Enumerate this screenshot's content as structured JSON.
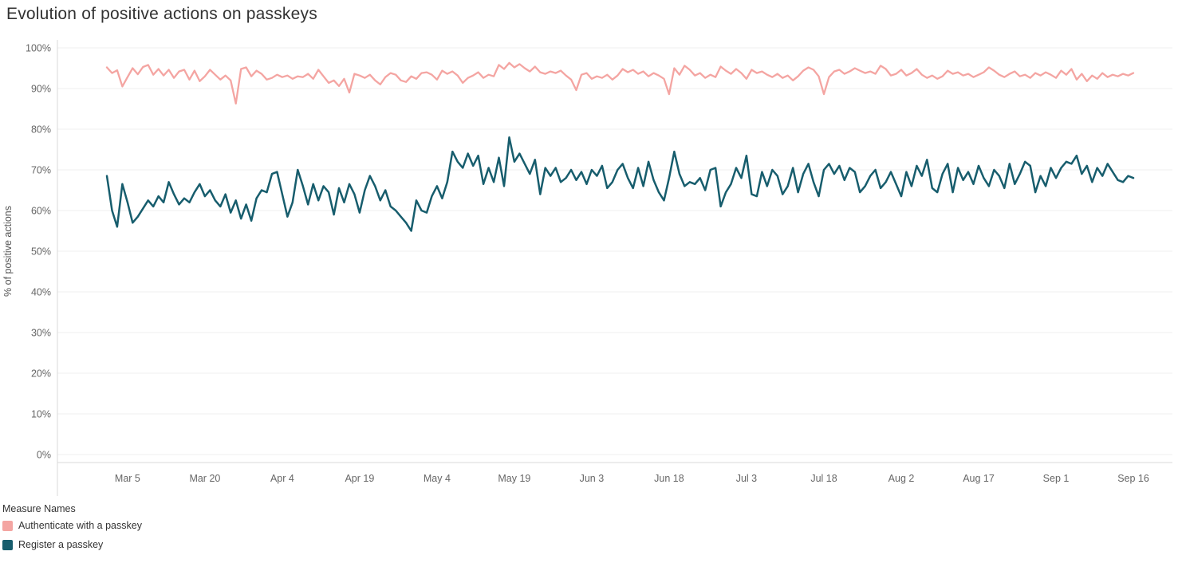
{
  "title": "Evolution of positive actions on passkeys",
  "legend": {
    "title": "Measure Names"
  },
  "chart_data": {
    "type": "line",
    "title": "Evolution of positive actions on passkeys",
    "xlabel": "",
    "ylabel": "% of positive actions",
    "ylim": [
      0,
      100
    ],
    "y_ticks": [
      0,
      10,
      20,
      30,
      40,
      50,
      60,
      70,
      80,
      90,
      100
    ],
    "y_tick_suffix": "%",
    "grid": true,
    "legend_position": "bottom-left",
    "n_points": 200,
    "x_start": "Mar 1",
    "x_end": "Sep 16",
    "x_tick_labels": [
      "Mar 5",
      "Mar 20",
      "Apr 4",
      "Apr 19",
      "May 4",
      "May 19",
      "Jun 3",
      "Jun 18",
      "Jul 3",
      "Jul 18",
      "Aug 2",
      "Aug 17",
      "Sep 1",
      "Sep 16"
    ],
    "x_tick_indices": [
      4,
      19,
      34,
      49,
      64,
      79,
      94,
      109,
      124,
      139,
      154,
      169,
      184,
      199
    ],
    "series": [
      {
        "name": "Authenticate with a passkey",
        "color": "#f4a5a2",
        "values": [
          95.2,
          93.8,
          94.5,
          90.5,
          92.8,
          95.0,
          93.5,
          95.3,
          95.8,
          93.4,
          94.8,
          93.2,
          94.6,
          92.6,
          94.2,
          94.6,
          92.2,
          94.4,
          91.8,
          93.0,
          94.6,
          93.4,
          92.2,
          93.2,
          92.0,
          86.3,
          94.8,
          95.2,
          93.0,
          94.4,
          93.6,
          92.2,
          92.6,
          93.4,
          92.8,
          93.2,
          92.4,
          93.0,
          92.8,
          93.6,
          92.4,
          94.6,
          93.0,
          91.4,
          92.0,
          90.6,
          92.4,
          89.0,
          93.6,
          93.2,
          92.6,
          93.4,
          92.0,
          91.0,
          92.8,
          93.8,
          93.4,
          92.0,
          91.6,
          93.0,
          92.4,
          93.8,
          94.0,
          93.4,
          92.2,
          94.4,
          93.6,
          94.2,
          93.2,
          91.4,
          92.6,
          93.2,
          94.0,
          92.6,
          93.4,
          93.0,
          95.8,
          94.8,
          96.3,
          95.2,
          96.0,
          95.0,
          94.2,
          95.4,
          94.0,
          93.6,
          94.2,
          93.8,
          94.4,
          93.2,
          92.2,
          89.6,
          93.4,
          93.8,
          92.4,
          93.0,
          92.6,
          93.4,
          92.2,
          93.2,
          94.8,
          94.0,
          94.6,
          93.6,
          94.2,
          93.0,
          93.8,
          93.2,
          92.4,
          88.6,
          95.0,
          93.4,
          95.6,
          94.6,
          93.2,
          93.8,
          92.6,
          93.4,
          92.8,
          95.4,
          94.4,
          93.6,
          94.8,
          93.8,
          92.4,
          94.6,
          93.8,
          94.2,
          93.4,
          92.8,
          93.6,
          92.6,
          93.2,
          92.0,
          93.0,
          94.4,
          95.2,
          94.6,
          93.0,
          88.6,
          92.8,
          94.2,
          94.6,
          93.6,
          94.2,
          95.0,
          94.4,
          93.8,
          94.2,
          93.6,
          95.6,
          94.8,
          93.2,
          93.6,
          94.6,
          93.2,
          93.8,
          94.8,
          93.4,
          92.6,
          93.2,
          92.4,
          93.0,
          94.4,
          93.6,
          94.0,
          93.2,
          93.6,
          92.8,
          93.4,
          94.0,
          95.2,
          94.4,
          93.4,
          92.8,
          93.6,
          94.2,
          93.0,
          93.4,
          92.6,
          93.8,
          93.2,
          94.0,
          93.4,
          92.6,
          94.4,
          93.4,
          94.8,
          92.2,
          93.6,
          91.8,
          93.2,
          92.4,
          93.8,
          92.8,
          93.4,
          93.0,
          93.6,
          93.2,
          93.8
        ]
      },
      {
        "name": "Register a passkey",
        "color": "#175d6d",
        "values": [
          68.5,
          60.0,
          56.0,
          66.5,
          62.0,
          57.0,
          58.5,
          60.5,
          62.5,
          61.0,
          63.5,
          62.0,
          67.0,
          64.0,
          61.5,
          63.0,
          62.0,
          64.5,
          66.5,
          63.5,
          65.0,
          62.5,
          61.0,
          64.0,
          59.5,
          62.5,
          58.0,
          61.5,
          57.5,
          63.0,
          65.0,
          64.5,
          69.0,
          69.5,
          64.0,
          58.5,
          62.0,
          70.0,
          66.0,
          61.5,
          66.5,
          62.5,
          66.0,
          64.5,
          59.0,
          65.5,
          62.0,
          66.5,
          64.0,
          59.5,
          65.0,
          68.5,
          66.0,
          62.5,
          65.0,
          61.0,
          60.0,
          58.5,
          57.0,
          55.0,
          62.5,
          60.0,
          59.5,
          63.5,
          66.0,
          63.0,
          67.0,
          74.5,
          72.0,
          70.5,
          74.0,
          71.0,
          73.5,
          66.5,
          70.5,
          67.0,
          73.0,
          66.0,
          78.0,
          72.0,
          74.0,
          71.5,
          69.0,
          72.5,
          64.0,
          70.5,
          68.5,
          70.5,
          67.0,
          68.0,
          70.0,
          67.5,
          69.5,
          66.5,
          70.0,
          68.5,
          71.0,
          65.5,
          67.0,
          70.0,
          71.5,
          68.0,
          65.5,
          70.5,
          66.0,
          72.0,
          67.5,
          64.5,
          62.5,
          68.0,
          74.5,
          69.0,
          66.0,
          67.0,
          66.5,
          68.0,
          65.0,
          70.0,
          70.5,
          61.0,
          64.5,
          66.5,
          70.5,
          68.0,
          73.5,
          64.0,
          63.5,
          69.5,
          66.0,
          70.0,
          68.5,
          64.0,
          66.0,
          70.5,
          64.5,
          69.0,
          71.5,
          67.0,
          63.5,
          70.0,
          71.5,
          69.0,
          71.0,
          67.5,
          70.5,
          69.5,
          64.5,
          66.0,
          68.5,
          70.0,
          65.5,
          67.0,
          69.5,
          66.5,
          63.5,
          69.5,
          66.0,
          71.0,
          68.5,
          72.5,
          65.5,
          64.5,
          69.0,
          71.5,
          64.5,
          70.5,
          67.5,
          69.5,
          66.5,
          71.0,
          68.0,
          66.0,
          70.0,
          68.5,
          65.5,
          71.5,
          66.5,
          69.0,
          72.0,
          71.0,
          64.5,
          68.5,
          66.0,
          70.5,
          68.0,
          70.5,
          72.0,
          71.5,
          73.5,
          69.0,
          71.0,
          67.0,
          70.5,
          68.5,
          71.5,
          69.5,
          67.5,
          67.0,
          68.5,
          68.0
        ]
      }
    ],
    "colors": {
      "axis_line": "#d8d8d8",
      "gridline": "#efefef",
      "tick_label": "#666666",
      "axis_title": "#555555"
    }
  }
}
